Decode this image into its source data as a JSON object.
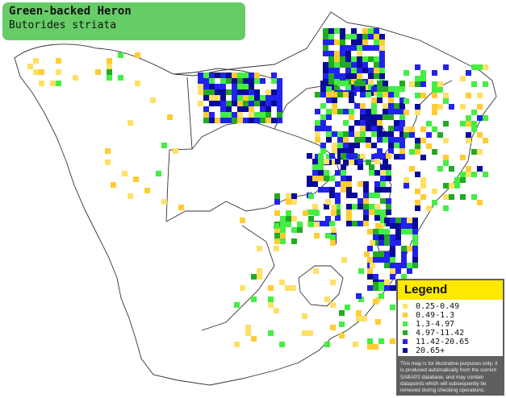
{
  "species": {
    "common_name": "Green-backed Heron",
    "scientific_name": "Butorides striata"
  },
  "legend": {
    "title": "Legend",
    "items": [
      {
        "label": "0.25-0.49",
        "color": "#ffe066"
      },
      {
        "label": "0.49-1.3",
        "color": "#ffcc33"
      },
      {
        "label": "1.3-4.97",
        "color": "#44ee44"
      },
      {
        "label": "4.97-11.42",
        "color": "#22aa22"
      },
      {
        "label": "11.42-20.65",
        "color": "#2222ee"
      },
      {
        "label": "20.65+",
        "color": "#0a0a99"
      }
    ],
    "note": "This map is for illustrative purposes only; it is produced automatically from the current SABAP2 database, and may contain datapoints which will subsequently be removed during checking operations."
  },
  "colors": {
    "title_background": "#66cc66",
    "legend_header": "#ffe800",
    "legend_background": "#5f5f5f"
  }
}
